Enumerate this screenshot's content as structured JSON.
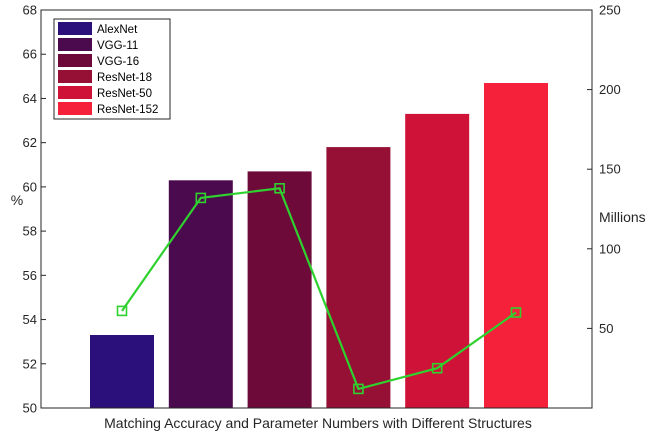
{
  "chart_data": {
    "type": "bar",
    "title": "",
    "xlabel": "Matching Accuracy and Parameter Numbers with Different Structures",
    "ylabel": "%",
    "y2label": "Millions",
    "ylim": [
      50,
      68
    ],
    "y2lim": [
      0,
      250
    ],
    "yticks": [
      "50",
      "52",
      "54",
      "56",
      "58",
      "60",
      "62",
      "64",
      "66",
      "68"
    ],
    "y2ticks": [
      "50",
      "100",
      "150",
      "200",
      "250"
    ],
    "legend_position": "top-left",
    "series": [
      {
        "name": "Matching Accuracy",
        "axis": "left",
        "kind": "bar",
        "categories": [
          "AlexNet",
          "VGG-11",
          "VGG-16",
          "ResNet-18",
          "ResNet-50",
          "ResNet-152"
        ],
        "values": [
          53.3,
          60.3,
          60.7,
          61.8,
          63.3,
          64.7
        ],
        "colors": [
          "#2b0f7a",
          "#4c0a4e",
          "#6e0a3a",
          "#960f35",
          "#cf1238",
          "#f5203a"
        ]
      },
      {
        "name": "Parameter Numbers",
        "axis": "right",
        "kind": "line",
        "values": [
          61,
          132,
          138,
          12,
          25,
          60
        ],
        "color": "#2ed12e"
      }
    ]
  }
}
